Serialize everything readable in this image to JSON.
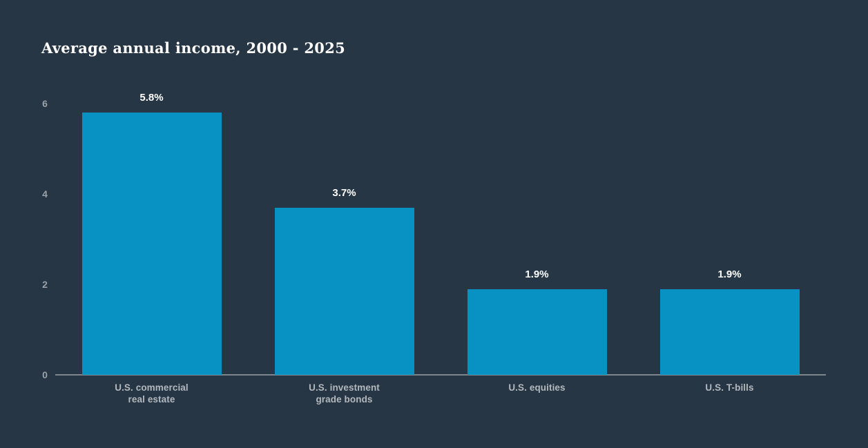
{
  "page": {
    "background_color": "#263645"
  },
  "chart_data": {
    "type": "bar",
    "title": "Average annual income, 2000 - 2025",
    "categories": [
      "U.S. commercial real estate",
      "U.S. investment grade bonds",
      "U.S. equities",
      "U.S. T-bills"
    ],
    "category_lines": [
      [
        "U.S. commercial",
        "real estate"
      ],
      [
        "U.S. investment",
        "grade bonds"
      ],
      [
        "U.S. equities"
      ],
      [
        "U.S. T-bills"
      ]
    ],
    "values": [
      5.8,
      3.7,
      1.9,
      1.9
    ],
    "value_labels": [
      "5.8%",
      "3.7%",
      "1.9%",
      "1.9%"
    ],
    "xlabel": "",
    "ylabel": "",
    "ylim": [
      0,
      6
    ],
    "yticks": [
      0,
      2,
      4,
      6
    ],
    "grid": false,
    "legend": null,
    "colors": {
      "bar": "#0892c3",
      "title_text": "#ffffff",
      "value_label_text": "#ffffff",
      "tick_label_text": "#9aa1a8",
      "category_label_text": "#b3b8bd",
      "axis_line": "#7d858d"
    }
  }
}
